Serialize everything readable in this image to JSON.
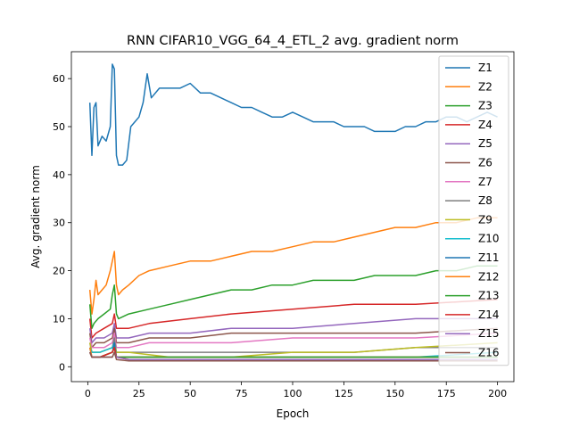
{
  "chart_data": {
    "type": "line",
    "title": "RNN CIFAR10_VGG_64_4_ETL_2 avg. gradient norm",
    "xlabel": "Epoch",
    "ylabel": "Avg. gradient norm",
    "xlim": [
      -8,
      208
    ],
    "ylim": [
      -3.1,
      65.6
    ],
    "xticks": [
      0,
      25,
      50,
      75,
      100,
      125,
      150,
      175,
      200
    ],
    "yticks": [
      0,
      10,
      20,
      30,
      40,
      50,
      60
    ],
    "legend_position": "upper right",
    "series": [
      {
        "name": "Z1",
        "color": "#1f77b4",
        "points": [
          [
            1,
            55
          ],
          [
            2,
            44
          ],
          [
            3,
            54
          ],
          [
            4,
            55
          ],
          [
            5,
            46
          ],
          [
            7,
            48
          ],
          [
            9,
            47
          ],
          [
            11,
            50
          ],
          [
            12,
            63
          ],
          [
            13,
            62
          ],
          [
            14,
            44
          ],
          [
            15,
            42
          ],
          [
            17,
            42
          ],
          [
            19,
            43
          ],
          [
            21,
            50
          ],
          [
            23,
            51
          ],
          [
            25,
            52
          ],
          [
            27,
            55
          ],
          [
            29,
            61
          ],
          [
            31,
            56
          ],
          [
            35,
            58
          ],
          [
            40,
            58
          ],
          [
            45,
            58
          ],
          [
            50,
            59
          ],
          [
            55,
            57
          ],
          [
            60,
            57
          ],
          [
            65,
            56
          ],
          [
            70,
            55
          ],
          [
            75,
            54
          ],
          [
            80,
            54
          ],
          [
            85,
            53
          ],
          [
            90,
            52
          ],
          [
            95,
            52
          ],
          [
            100,
            53
          ],
          [
            105,
            52
          ],
          [
            110,
            51
          ],
          [
            115,
            51
          ],
          [
            120,
            51
          ],
          [
            125,
            50
          ],
          [
            130,
            50
          ],
          [
            135,
            50
          ],
          [
            140,
            49
          ],
          [
            145,
            49
          ],
          [
            150,
            49
          ],
          [
            155,
            50
          ],
          [
            160,
            50
          ],
          [
            165,
            51
          ],
          [
            170,
            51
          ],
          [
            175,
            52
          ],
          [
            180,
            52
          ],
          [
            185,
            51
          ],
          [
            190,
            52
          ],
          [
            195,
            53
          ],
          [
            200,
            52
          ]
        ]
      },
      {
        "name": "Z2",
        "color": "#ff7f0e",
        "points": [
          [
            1,
            16
          ],
          [
            2,
            11
          ],
          [
            3,
            14
          ],
          [
            4,
            18
          ],
          [
            5,
            15
          ],
          [
            7,
            16
          ],
          [
            9,
            17
          ],
          [
            11,
            20
          ],
          [
            12,
            22
          ],
          [
            13,
            24
          ],
          [
            14,
            17
          ],
          [
            15,
            15
          ],
          [
            17,
            16
          ],
          [
            20,
            17
          ],
          [
            25,
            19
          ],
          [
            30,
            20
          ],
          [
            40,
            21
          ],
          [
            50,
            22
          ],
          [
            60,
            22
          ],
          [
            70,
            23
          ],
          [
            80,
            24
          ],
          [
            90,
            24
          ],
          [
            100,
            25
          ],
          [
            110,
            26
          ],
          [
            120,
            26
          ],
          [
            130,
            27
          ],
          [
            140,
            28
          ],
          [
            150,
            29
          ],
          [
            160,
            29
          ],
          [
            170,
            30
          ],
          [
            180,
            30
          ],
          [
            190,
            31
          ],
          [
            200,
            31
          ]
        ]
      },
      {
        "name": "Z3",
        "color": "#2ca02c",
        "points": [
          [
            1,
            13
          ],
          [
            2,
            8
          ],
          [
            3,
            9
          ],
          [
            5,
            10
          ],
          [
            8,
            11
          ],
          [
            11,
            12
          ],
          [
            12,
            15
          ],
          [
            13,
            17
          ],
          [
            14,
            11
          ],
          [
            15,
            10
          ],
          [
            20,
            11
          ],
          [
            30,
            12
          ],
          [
            40,
            13
          ],
          [
            50,
            14
          ],
          [
            60,
            15
          ],
          [
            70,
            16
          ],
          [
            80,
            16
          ],
          [
            90,
            17
          ],
          [
            100,
            17
          ],
          [
            110,
            18
          ],
          [
            120,
            18
          ],
          [
            130,
            18
          ],
          [
            140,
            19
          ],
          [
            150,
            19
          ],
          [
            160,
            19
          ],
          [
            170,
            20
          ],
          [
            180,
            20
          ],
          [
            190,
            21
          ],
          [
            200,
            21
          ]
        ]
      },
      {
        "name": "Z4",
        "color": "#d62728",
        "points": [
          [
            1,
            10
          ],
          [
            2,
            6
          ],
          [
            4,
            7
          ],
          [
            8,
            8
          ],
          [
            12,
            9
          ],
          [
            13,
            11
          ],
          [
            14,
            8
          ],
          [
            20,
            8
          ],
          [
            30,
            9
          ],
          [
            50,
            10
          ],
          [
            70,
            11
          ],
          [
            100,
            12
          ],
          [
            130,
            13
          ],
          [
            160,
            13
          ],
          [
            200,
            14
          ]
        ]
      },
      {
        "name": "Z5",
        "color": "#9467bd",
        "points": [
          [
            1,
            8
          ],
          [
            2,
            5
          ],
          [
            4,
            6
          ],
          [
            8,
            6
          ],
          [
            12,
            7
          ],
          [
            13,
            9
          ],
          [
            14,
            6
          ],
          [
            20,
            6
          ],
          [
            30,
            7
          ],
          [
            50,
            7
          ],
          [
            70,
            8
          ],
          [
            100,
            8
          ],
          [
            130,
            9
          ],
          [
            160,
            10
          ],
          [
            200,
            10
          ]
        ]
      },
      {
        "name": "Z6",
        "color": "#8c564b",
        "points": [
          [
            1,
            7
          ],
          [
            2,
            4
          ],
          [
            4,
            5
          ],
          [
            8,
            5
          ],
          [
            12,
            6
          ],
          [
            13,
            8
          ],
          [
            14,
            5
          ],
          [
            20,
            5
          ],
          [
            30,
            6
          ],
          [
            50,
            6
          ],
          [
            70,
            7
          ],
          [
            100,
            7
          ],
          [
            130,
            7
          ],
          [
            160,
            7
          ],
          [
            200,
            8
          ]
        ]
      },
      {
        "name": "Z7",
        "color": "#e377c2",
        "points": [
          [
            1,
            6
          ],
          [
            2,
            4
          ],
          [
            4,
            4
          ],
          [
            8,
            4
          ],
          [
            12,
            5
          ],
          [
            13,
            7
          ],
          [
            14,
            4
          ],
          [
            20,
            4
          ],
          [
            30,
            5
          ],
          [
            50,
            5
          ],
          [
            70,
            5
          ],
          [
            100,
            6
          ],
          [
            130,
            6
          ],
          [
            160,
            6
          ],
          [
            200,
            7
          ]
        ]
      },
      {
        "name": "Z8",
        "color": "#7f7f7f",
        "points": [
          [
            1,
            5
          ],
          [
            2,
            3
          ],
          [
            6,
            3
          ],
          [
            12,
            4
          ],
          [
            13,
            6
          ],
          [
            14,
            3
          ],
          [
            20,
            3
          ],
          [
            40,
            3
          ],
          [
            70,
            3
          ],
          [
            100,
            3
          ],
          [
            130,
            3
          ],
          [
            160,
            4
          ],
          [
            200,
            4
          ]
        ]
      },
      {
        "name": "Z9",
        "color": "#bcbd22",
        "points": [
          [
            1,
            5
          ],
          [
            2,
            3
          ],
          [
            6,
            3
          ],
          [
            12,
            4
          ],
          [
            13,
            5
          ],
          [
            14,
            3
          ],
          [
            20,
            3
          ],
          [
            40,
            2
          ],
          [
            70,
            2
          ],
          [
            100,
            3
          ],
          [
            130,
            3
          ],
          [
            160,
            4
          ],
          [
            200,
            5
          ]
        ]
      },
      {
        "name": "Z10",
        "color": "#17becf",
        "points": [
          [
            1,
            4
          ],
          [
            2,
            3
          ],
          [
            6,
            3
          ],
          [
            12,
            4
          ],
          [
            13,
            5
          ],
          [
            14,
            2
          ],
          [
            20,
            2
          ],
          [
            40,
            2
          ],
          [
            70,
            2
          ],
          [
            100,
            2
          ],
          [
            130,
            2
          ],
          [
            160,
            2
          ],
          [
            200,
            3
          ]
        ]
      },
      {
        "name": "Z11",
        "color": "#1f77b4",
        "points": [
          [
            1,
            4
          ],
          [
            2,
            2
          ],
          [
            6,
            2
          ],
          [
            12,
            3
          ],
          [
            13,
            5
          ],
          [
            14,
            2
          ],
          [
            20,
            2
          ],
          [
            40,
            2
          ],
          [
            70,
            2
          ],
          [
            100,
            2
          ],
          [
            130,
            2
          ],
          [
            160,
            2
          ],
          [
            200,
            2
          ]
        ]
      },
      {
        "name": "Z12",
        "color": "#ff7f0e",
        "points": [
          [
            1,
            4
          ],
          [
            2,
            2
          ],
          [
            6,
            2
          ],
          [
            12,
            3
          ],
          [
            13,
            4
          ],
          [
            14,
            2
          ],
          [
            20,
            2
          ],
          [
            40,
            2
          ],
          [
            70,
            2
          ],
          [
            100,
            2
          ],
          [
            130,
            2
          ],
          [
            160,
            2
          ],
          [
            200,
            2
          ]
        ]
      },
      {
        "name": "Z13",
        "color": "#2ca02c",
        "points": [
          [
            1,
            3
          ],
          [
            2,
            2
          ],
          [
            6,
            2
          ],
          [
            12,
            3
          ],
          [
            13,
            4
          ],
          [
            14,
            2
          ],
          [
            20,
            2
          ],
          [
            40,
            2
          ],
          [
            70,
            2
          ],
          [
            100,
            2
          ],
          [
            130,
            2
          ],
          [
            160,
            2
          ],
          [
            200,
            2
          ]
        ]
      },
      {
        "name": "Z14",
        "color": "#d62728",
        "points": [
          [
            1,
            3
          ],
          [
            2,
            2
          ],
          [
            6,
            2
          ],
          [
            12,
            3
          ],
          [
            13,
            4
          ],
          [
            14,
            2
          ],
          [
            20,
            1.5
          ],
          [
            40,
            1.5
          ],
          [
            70,
            1.5
          ],
          [
            100,
            1.5
          ],
          [
            130,
            1.5
          ],
          [
            160,
            1.5
          ],
          [
            200,
            1.5
          ]
        ]
      },
      {
        "name": "Z15",
        "color": "#9467bd",
        "points": [
          [
            1,
            3
          ],
          [
            2,
            2
          ],
          [
            6,
            2
          ],
          [
            12,
            2
          ],
          [
            13,
            3
          ],
          [
            14,
            2
          ],
          [
            20,
            1.5
          ],
          [
            40,
            1.5
          ],
          [
            70,
            1.5
          ],
          [
            100,
            1.5
          ],
          [
            130,
            1.5
          ],
          [
            160,
            1.5
          ],
          [
            200,
            1.5
          ]
        ]
      },
      {
        "name": "Z16",
        "color": "#8c564b",
        "points": [
          [
            1,
            3
          ],
          [
            2,
            2
          ],
          [
            6,
            2
          ],
          [
            12,
            2
          ],
          [
            13,
            3
          ],
          [
            14,
            1.5
          ],
          [
            20,
            1.2
          ],
          [
            40,
            1.2
          ],
          [
            70,
            1.2
          ],
          [
            100,
            1.2
          ],
          [
            130,
            1.2
          ],
          [
            160,
            1.2
          ],
          [
            200,
            1.2
          ]
        ]
      }
    ]
  }
}
